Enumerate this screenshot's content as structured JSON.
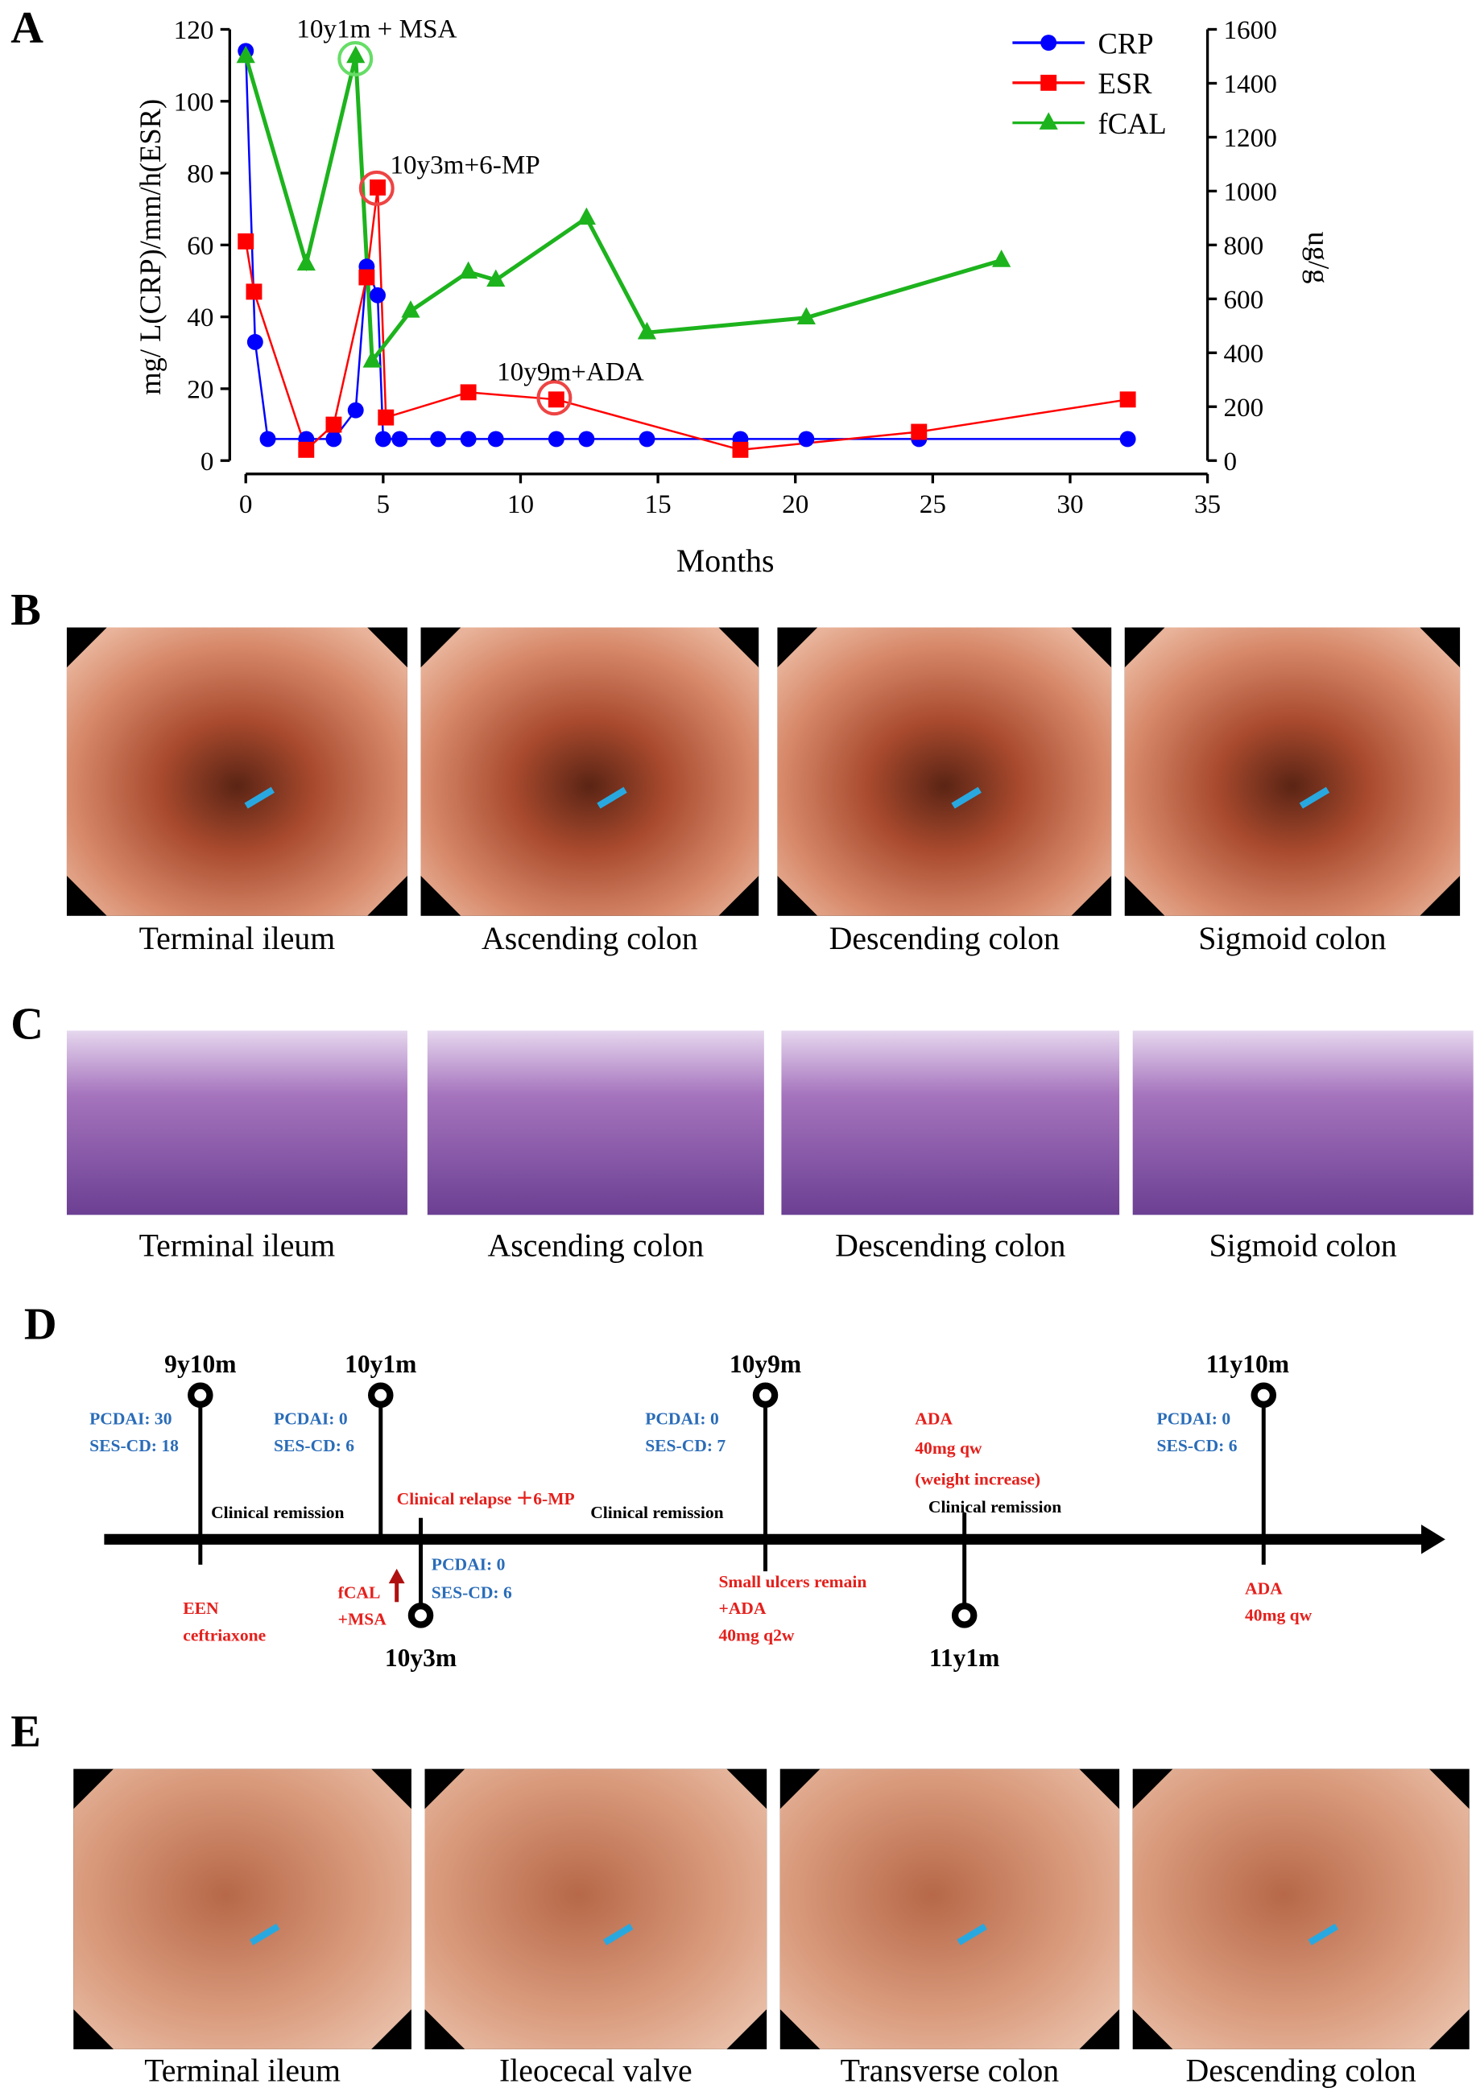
{
  "panel_labels": [
    "A",
    "B",
    "C",
    "D",
    "E"
  ],
  "chart_data": {
    "type": "line",
    "x_label": "Months",
    "y_label": "mg/ L(CRP)/mm/h(ESR)",
    "y2_label": "ug/g",
    "xlim": [
      0,
      35
    ],
    "xticks": [
      0,
      5,
      10,
      15,
      20,
      25,
      30,
      35
    ],
    "ylim": [
      0,
      120
    ],
    "yticks": [
      0,
      20,
      40,
      60,
      80,
      100,
      120
    ],
    "y2lim": [
      0,
      1600
    ],
    "y2ticks": [
      0,
      200,
      400,
      600,
      800,
      1000,
      1200,
      1400,
      1600
    ],
    "legend": "upper right",
    "series": [
      {
        "name": "CRP",
        "color": "#0000ff",
        "marker": "circle",
        "x": [
          0,
          0.34,
          0.8,
          2.2,
          3.2,
          4,
          4.4,
          4.8,
          5,
          5.6,
          7,
          8.1,
          9.1,
          11.3,
          12.4,
          14.6,
          18,
          20.4,
          24.5,
          32.1
        ],
        "values": [
          114,
          33,
          6,
          6,
          6,
          14,
          54,
          46,
          6,
          6,
          6,
          6,
          6,
          6,
          6,
          6,
          6,
          6,
          6,
          6
        ]
      },
      {
        "name": "ESR",
        "color": "#ff0000",
        "marker": "square",
        "x": [
          0,
          0.3,
          2.2,
          3.2,
          4.4,
          4.8,
          5.1,
          8.1,
          11.3,
          18,
          24.5,
          32.1
        ],
        "values": [
          61,
          47,
          3,
          10,
          51,
          76,
          12,
          19,
          17,
          3,
          8,
          17
        ]
      },
      {
        "name": "fCAL",
        "color": "#1db31d",
        "marker": "triangle",
        "axis": "y2",
        "x": [
          0,
          2.2,
          4,
          4.6,
          6,
          8.1,
          9.1,
          12.4,
          14.6,
          20.4,
          27.5
        ],
        "values": [
          1500,
          730,
          1500,
          370,
          555,
          700,
          670,
          900,
          475,
          530,
          743
        ]
      }
    ],
    "annotations": [
      "10y1m + MSA",
      "10y3m+6-MP",
      "10y9m+ADA"
    ]
  },
  "panel_b": {
    "captions": [
      "Terminal ileum",
      "Ascending colon",
      "Descending colon",
      "Sigmoid colon"
    ]
  },
  "panel_c": {
    "captions": [
      "Terminal ileum",
      "Ascending colon",
      "Descending colon",
      "Sigmoid colon"
    ]
  },
  "panel_d": {
    "nodes": [
      {
        "label": "9y10m",
        "scores": [
          "PCDAI: 30",
          "SES-CD: 18"
        ],
        "events": [
          "EEN",
          "ceftriaxone"
        ]
      },
      {
        "label": "10y1m",
        "scores": [
          "PCDAI: 0",
          "SES-CD: 6"
        ],
        "events": [
          "fCAL",
          "+MSA"
        ]
      },
      {
        "label": "10y3m",
        "scores": [
          "PCDAI: 0",
          "SES-CD: 6"
        ]
      },
      {
        "label": "10y9m",
        "scores": [
          "PCDAI: 0",
          "SES-CD: 7"
        ],
        "events": [
          "Small ulcers remain",
          "+ADA",
          "40mg q2w"
        ]
      },
      {
        "label": "11y1m",
        "events": [
          "ADA",
          "40mg qw",
          "(weight increase)"
        ]
      },
      {
        "label": "11y10m",
        "scores": [
          "PCDAI: 0",
          "SES-CD: 6"
        ],
        "events": [
          "ADA",
          "40mg qw"
        ]
      }
    ],
    "phases": [
      "Clinical remission",
      "Clinical relapse ＋6-MP",
      "Clinical remission",
      "Clinical remission"
    ]
  },
  "panel_e": {
    "captions": [
      "Terminal ileum",
      "Ileocecal valve",
      "Transverse colon",
      "Descending colon"
    ]
  }
}
